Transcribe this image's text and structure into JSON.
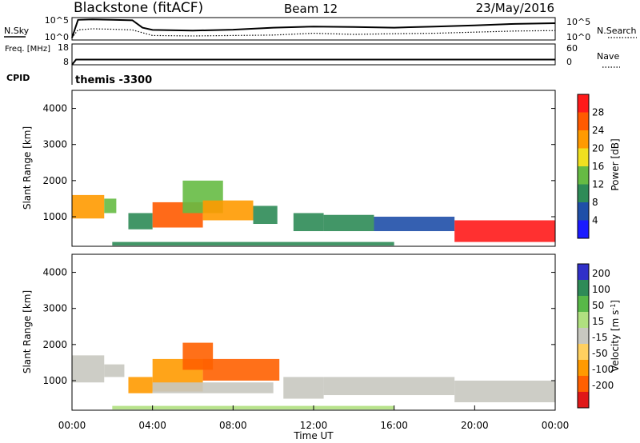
{
  "header": {
    "station": "Blackstone (fitACF)",
    "beam": "Beam 12",
    "date": "23/May/2016"
  },
  "colors": {
    "power": [
      "#1a1aff",
      "#1f4fa8",
      "#2e8b57",
      "#66bb44",
      "#f0e020",
      "#ff9a00",
      "#ff5a00",
      "#ff1a1a"
    ],
    "velocity": [
      "#3030c8",
      "#2e8b57",
      "#58b848",
      "#b0e080",
      "#c8c8c0",
      "#ffd060",
      "#ff9a00",
      "#ff6000",
      "#e01818"
    ]
  },
  "chart_data": [
    {
      "type": "line",
      "panel": "noise",
      "ylabel_left": "N.Sky",
      "ylabel_right": "N.Search",
      "ticks_left": [
        "10^5",
        "10^0"
      ],
      "ticks_right": [
        "10^5",
        "10^0"
      ],
      "series": [
        {
          "name": "N.Sky",
          "style": "solid",
          "x": [
            0.0,
            0.3,
            1.0,
            2.0,
            3.0,
            3.5,
            4.0,
            6.0,
            8.0,
            10.0,
            12.0,
            14.0,
            16.0,
            18.0,
            20.0,
            22.0,
            24.0
          ],
          "y": [
            0.1,
            0.9,
            0.92,
            0.9,
            0.88,
            0.55,
            0.45,
            0.42,
            0.46,
            0.55,
            0.6,
            0.58,
            0.55,
            0.6,
            0.65,
            0.72,
            0.75
          ]
        },
        {
          "name": "N.Search",
          "style": "dotted",
          "x": [
            0.0,
            0.3,
            1.0,
            2.0,
            3.0,
            4.0,
            6.0,
            8.0,
            10.0,
            12.0,
            14.0,
            16.0,
            18.0,
            20.0,
            22.0,
            24.0
          ],
          "y": [
            0.1,
            0.45,
            0.5,
            0.48,
            0.45,
            0.2,
            0.18,
            0.2,
            0.22,
            0.3,
            0.25,
            0.28,
            0.3,
            0.35,
            0.4,
            0.42
          ]
        }
      ]
    },
    {
      "type": "line",
      "panel": "frequency",
      "ylabel_left": "Freq. [MHz]",
      "ylabel_right": "Nave",
      "ticks_left": [
        "18",
        "8"
      ],
      "ticks_right": [
        "60",
        "0"
      ],
      "series": [
        {
          "name": "Freq.",
          "style": "solid",
          "x": [
            0.0,
            0.2,
            24.0
          ],
          "y": [
            8,
            10.5,
            10.5
          ]
        }
      ]
    },
    {
      "type": "table",
      "panel": "cpid",
      "label": "CPID",
      "value": "themis -3300"
    },
    {
      "type": "heatmap",
      "panel": "power",
      "xlabel": "",
      "ylabel": "Slant Range [km]",
      "xlim": [
        0,
        24
      ],
      "ylim": [
        180,
        4500
      ],
      "xticks": [],
      "yticks": [
        1000,
        2000,
        3000,
        4000
      ],
      "colorbar": {
        "label": "Power [dB]",
        "ticks": [
          4,
          8,
          12,
          16,
          20,
          24,
          28
        ],
        "range": [
          0,
          32
        ]
      },
      "patches": [
        {
          "x": [
            0.0,
            1.6
          ],
          "y": [
            950,
            1600
          ],
          "value": 22
        },
        {
          "x": [
            1.6,
            2.2
          ],
          "y": [
            1100,
            1500
          ],
          "value": 12
        },
        {
          "x": [
            2.8,
            4.0
          ],
          "y": [
            650,
            1100
          ],
          "value": 10
        },
        {
          "x": [
            4.0,
            6.5
          ],
          "y": [
            700,
            1400
          ],
          "value": 24
        },
        {
          "x": [
            5.5,
            7.5
          ],
          "y": [
            1100,
            2000
          ],
          "value": 12
        },
        {
          "x": [
            6.5,
            9.0
          ],
          "y": [
            900,
            1450
          ],
          "value": 20
        },
        {
          "x": [
            9.0,
            10.2
          ],
          "y": [
            800,
            1300
          ],
          "value": 10
        },
        {
          "x": [
            11.0,
            12.5
          ],
          "y": [
            600,
            1100
          ],
          "value": 8
        },
        {
          "x": [
            12.5,
            15.0
          ],
          "y": [
            600,
            1050
          ],
          "value": 10
        },
        {
          "x": [
            15.0,
            19.0
          ],
          "y": [
            600,
            1000
          ],
          "value": 7
        },
        {
          "x": [
            19.0,
            24.0
          ],
          "y": [
            300,
            900
          ],
          "value": 28
        },
        {
          "x": [
            2.0,
            16.0
          ],
          "y": [
            200,
            300
          ],
          "value": 9
        }
      ]
    },
    {
      "type": "heatmap",
      "panel": "velocity",
      "xlabel": "Time UT",
      "ylabel": "Slant Range [km]",
      "xlim": [
        0,
        24
      ],
      "ylim": [
        180,
        4500
      ],
      "xticks": [
        "00:00",
        "04:00",
        "08:00",
        "12:00",
        "16:00",
        "20:00",
        "00:00"
      ],
      "yticks": [
        1000,
        2000,
        3000,
        4000
      ],
      "colorbar": {
        "label": "Velocity [m s^-1]",
        "ticks": [
          200,
          100,
          50,
          15,
          -15,
          -50,
          -100,
          -200
        ],
        "range": [
          -250,
          250
        ]
      },
      "patches": [
        {
          "x": [
            0.0,
            1.6
          ],
          "y": [
            950,
            1700
          ],
          "value": 0
        },
        {
          "x": [
            1.6,
            2.6
          ],
          "y": [
            1100,
            1450
          ],
          "value": 0
        },
        {
          "x": [
            2.8,
            4.0
          ],
          "y": [
            650,
            1100
          ],
          "value": -40
        },
        {
          "x": [
            4.0,
            6.5
          ],
          "y": [
            700,
            1600
          ],
          "value": -70
        },
        {
          "x": [
            5.5,
            7.0
          ],
          "y": [
            1300,
            2050
          ],
          "value": -80
        },
        {
          "x": [
            6.5,
            10.3
          ],
          "y": [
            1000,
            1600
          ],
          "value": -75
        },
        {
          "x": [
            4.0,
            10.0
          ],
          "y": [
            650,
            950
          ],
          "value": 0
        },
        {
          "x": [
            10.5,
            12.5
          ],
          "y": [
            500,
            1100
          ],
          "value": 0
        },
        {
          "x": [
            12.5,
            19.0
          ],
          "y": [
            600,
            1100
          ],
          "value": 0
        },
        {
          "x": [
            19.0,
            24.0
          ],
          "y": [
            400,
            1000
          ],
          "value": 0
        },
        {
          "x": [
            2.0,
            16.0
          ],
          "y": [
            200,
            300
          ],
          "value": 30
        }
      ]
    }
  ]
}
